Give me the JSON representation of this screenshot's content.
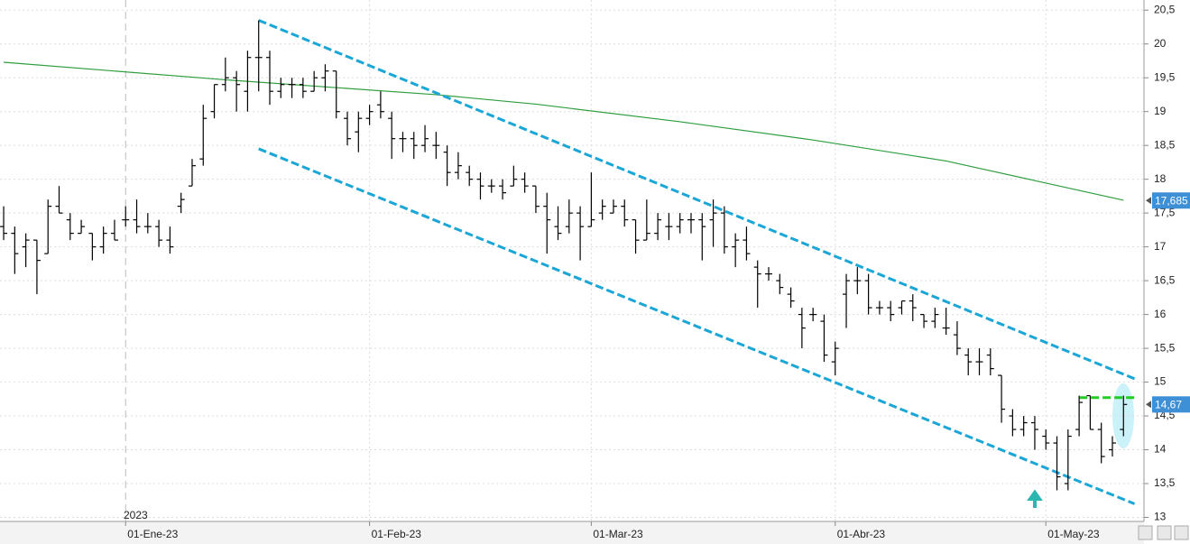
{
  "chart_data": {
    "type": "ohlc",
    "year_label": "2023",
    "xlim": [
      -0.33,
      102.85
    ],
    "xticks": [
      {
        "value": 11,
        "label": "01-Ene-23"
      },
      {
        "value": 33,
        "label": "01-Feb-23"
      },
      {
        "value": 53,
        "label": "01-Mar-23"
      },
      {
        "value": 75,
        "label": "01-Abr-23"
      },
      {
        "value": 94,
        "label": "01-May-23"
      }
    ],
    "ylim": [
      12.94,
      20.65
    ],
    "yticks": [
      13,
      {
        "value": 13.5,
        "label": "13,5"
      },
      14,
      {
        "value": 14.5,
        "label": "14,5"
      },
      15,
      {
        "value": 15.5,
        "label": "15,5"
      },
      16,
      {
        "value": 16.5,
        "label": "16,5"
      },
      17,
      {
        "value": 17.5,
        "label": "17,5"
      },
      18,
      {
        "value": 18.5,
        "label": "18,5"
      },
      19,
      {
        "value": 19.5,
        "label": "19,5"
      },
      20,
      {
        "value": 20.5,
        "label": "20,5"
      }
    ],
    "grid": true,
    "color": "#000000",
    "open": [
      17.3,
      17.2,
      17.0,
      17.1,
      16.9,
      17.6,
      17.4,
      17.2,
      17.2,
      17.0,
      17.2,
      17.4,
      17.4,
      17.3,
      17.3,
      17.1,
      17.6,
      17.9,
      18.3,
      19.0,
      19.4,
      19.5,
      19.3,
      19.8,
      19.8,
      19.3,
      19.4,
      19.4,
      19.3,
      19.5,
      19.6,
      18.9,
      18.7,
      18.9,
      19.1,
      18.9,
      18.6,
      18.6,
      18.5,
      18.5,
      18.4,
      18.1,
      18.1,
      18.0,
      17.9,
      17.9,
      17.9,
      18.0,
      17.9,
      17.6,
      17.3,
      17.3,
      17.5,
      17.3,
      17.5,
      17.5,
      17.6,
      17.4,
      17.1,
      17.2,
      17.3,
      17.3,
      17.4,
      17.4,
      17.4,
      17.5,
      17.0,
      17.1,
      16.7,
      16.6,
      16.5,
      16.3,
      16.0,
      16.0,
      15.9,
      15.3,
      16.3,
      16.5,
      16.5,
      16.1,
      16.1,
      16.1,
      16.2,
      16.0,
      15.9,
      15.8,
      15.7,
      15.4,
      15.3,
      15.4,
      15.1,
      14.5,
      14.3,
      14.4,
      14.2,
      14.1,
      13.5,
      14.3,
      14.8,
      14.3,
      14.0,
      14.3
    ],
    "high": [
      17.6,
      17.3,
      17.2,
      17.1,
      17.7,
      17.9,
      17.5,
      17.4,
      17.2,
      17.3,
      17.4,
      17.6,
      17.7,
      17.5,
      17.4,
      17.3,
      17.8,
      18.3,
      19.1,
      19.4,
      19.8,
      19.6,
      19.9,
      20.35,
      19.9,
      19.5,
      19.5,
      19.5,
      19.6,
      19.7,
      19.6,
      19.0,
      19.0,
      19.1,
      19.3,
      19.0,
      18.7,
      18.7,
      18.8,
      18.7,
      18.5,
      18.4,
      18.2,
      18.1,
      18.0,
      18.0,
      18.2,
      18.1,
      17.9,
      17.8,
      17.6,
      17.7,
      17.6,
      18.1,
      17.7,
      17.7,
      17.7,
      17.4,
      17.7,
      17.5,
      17.5,
      17.5,
      17.5,
      17.5,
      17.7,
      17.6,
      17.2,
      17.3,
      16.8,
      16.7,
      16.6,
      16.4,
      16.1,
      16.1,
      16.0,
      15.6,
      16.6,
      16.7,
      16.6,
      16.2,
      16.2,
      16.2,
      16.3,
      16.0,
      16.1,
      16.1,
      15.9,
      15.5,
      15.5,
      15.5,
      15.1,
      14.6,
      14.5,
      14.5,
      14.3,
      14.2,
      14.3,
      14.8,
      14.8,
      14.4,
      14.2,
      14.8
    ],
    "low": [
      17.1,
      16.6,
      16.7,
      16.3,
      16.9,
      17.5,
      17.1,
      17.2,
      16.8,
      16.9,
      17.1,
      17.3,
      17.2,
      17.2,
      17.0,
      16.9,
      17.5,
      17.9,
      18.2,
      18.9,
      19.3,
      19.0,
      19.0,
      19.3,
      19.1,
      19.2,
      19.2,
      19.2,
      19.3,
      19.3,
      18.9,
      18.5,
      18.4,
      18.8,
      18.9,
      18.3,
      18.4,
      18.3,
      18.4,
      18.3,
      17.9,
      18.0,
      17.9,
      17.7,
      17.8,
      17.7,
      17.9,
      17.8,
      17.5,
      16.9,
      17.1,
      17.2,
      16.8,
      17.3,
      17.4,
      17.5,
      17.3,
      16.9,
      17.1,
      17.1,
      17.1,
      17.2,
      17.2,
      16.8,
      17.0,
      16.9,
      16.7,
      16.8,
      16.1,
      16.5,
      16.3,
      16.1,
      15.5,
      15.9,
      15.3,
      15.1,
      15.8,
      16.3,
      16.0,
      16.0,
      15.9,
      16.0,
      15.9,
      15.8,
      15.8,
      15.7,
      15.4,
      15.1,
      15.1,
      15.1,
      14.4,
      14.2,
      14.2,
      14.0,
      14.0,
      13.4,
      13.4,
      14.2,
      14.3,
      13.8,
      13.9,
      14.2
    ],
    "close": [
      17.2,
      16.9,
      17.1,
      16.8,
      17.6,
      17.5,
      17.2,
      17.3,
      17.0,
      17.2,
      17.1,
      17.4,
      17.3,
      17.3,
      17.1,
      17.0,
      17.7,
      18.2,
      18.9,
      19.4,
      19.5,
      19.4,
      19.8,
      19.8,
      19.3,
      19.4,
      19.4,
      19.3,
      19.5,
      19.6,
      19.0,
      18.6,
      18.9,
      19.0,
      19.0,
      18.6,
      18.6,
      18.5,
      18.6,
      18.5,
      18.1,
      18.2,
      18.0,
      17.9,
      17.9,
      17.8,
      18.0,
      17.9,
      17.6,
      17.4,
      17.2,
      17.5,
      17.3,
      17.4,
      17.6,
      17.6,
      17.4,
      17.1,
      17.2,
      17.4,
      17.3,
      17.4,
      17.4,
      17.3,
      17.5,
      17.0,
      17.1,
      16.9,
      16.6,
      16.6,
      16.4,
      16.2,
      15.8,
      16.0,
      15.4,
      15.5,
      16.5,
      16.5,
      16.1,
      16.1,
      16.0,
      16.2,
      16.1,
      15.9,
      16.0,
      15.8,
      15.5,
      15.3,
      15.3,
      15.2,
      14.6,
      14.3,
      14.4,
      14.3,
      14.1,
      13.6,
      14.2,
      14.7,
      14.3,
      13.9,
      14.1,
      14.67
    ],
    "moving_average": {
      "color": "#2e9e3e",
      "x": [
        0,
        20,
        39,
        48,
        61,
        73,
        85,
        93,
        101
      ],
      "values": [
        19.73,
        19.47,
        19.25,
        19.11,
        18.85,
        18.58,
        18.27,
        17.98,
        17.69
      ]
    },
    "channel_lines": [
      {
        "color": "#1aa6d6",
        "x": [
          23,
          102
        ],
        "values": [
          20.35,
          15.05
        ]
      },
      {
        "color": "#1aa6d6",
        "x": [
          23,
          102
        ],
        "values": [
          18.45,
          13.2
        ]
      }
    ],
    "level_line": {
      "color": "#22cc22",
      "x": [
        97,
        102
      ],
      "values": [
        14.77,
        14.77
      ]
    },
    "price_tags": [
      {
        "value": 17.685,
        "label": "17,685"
      },
      {
        "value": 14.67,
        "label": "14,67"
      }
    ]
  }
}
